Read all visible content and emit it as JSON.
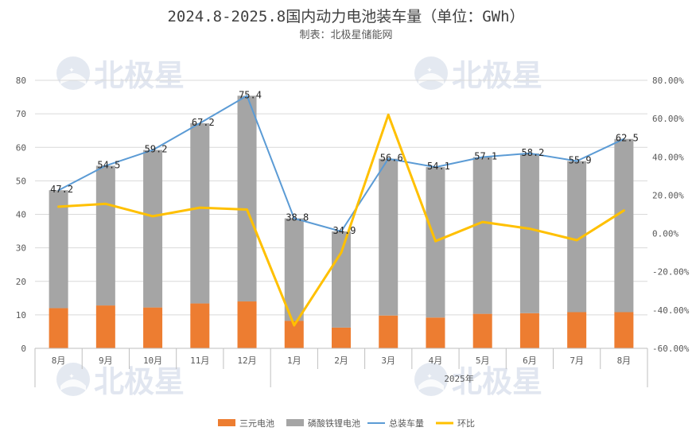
{
  "chart_data": {
    "type": "bar",
    "title": "2024.8-2025.8国内动力电池装车量（单位：GWh）",
    "subtitle": "制表：北极星储能网",
    "categories": [
      "8月",
      "9月",
      "10月",
      "11月",
      "12月",
      "1月",
      "2月",
      "3月",
      "4月",
      "5月",
      "6月",
      "7月",
      "8月"
    ],
    "year_group_label": "2025年",
    "ylim": [
      0,
      80
    ],
    "yticks": [
      "0",
      "10",
      "20",
      "30",
      "40",
      "50",
      "60",
      "70",
      "80"
    ],
    "y2lim": [
      -60,
      80
    ],
    "y2ticks": [
      "-60.00%",
      "-40.00%",
      "-20.00%",
      "0.00%",
      "20.00%",
      "40.00%",
      "60.00%",
      "80.00%"
    ],
    "stacked": true,
    "series": [
      {
        "name": "三元电池",
        "kind": "bar",
        "color": "#ed7d31",
        "values": [
          12.0,
          12.8,
          12.2,
          13.4,
          14.0,
          8.2,
          6.2,
          9.8,
          9.2,
          10.3,
          10.5,
          10.8,
          10.8
        ]
      },
      {
        "name": "磷酸铁锂电池",
        "kind": "bar",
        "color": "#a5a5a5",
        "values": [
          35.2,
          41.7,
          47.0,
          53.8,
          61.4,
          30.6,
          28.7,
          46.8,
          44.9,
          46.8,
          47.7,
          45.1,
          51.7
        ]
      },
      {
        "name": "总装车量",
        "kind": "line",
        "color": "#5b9bd5",
        "values": [
          47.2,
          54.5,
          59.2,
          67.2,
          75.4,
          38.8,
          34.9,
          56.6,
          54.1,
          57.1,
          58.2,
          55.9,
          62.5
        ],
        "labels": [
          "47.2",
          "54.5",
          "59.2",
          "67.2",
          "75.4",
          "38.8",
          "34.9",
          "56.6",
          "54.1",
          "57.1",
          "58.2",
          "55.9",
          "62.5"
        ]
      },
      {
        "name": "环比",
        "kind": "line",
        "axis": "right",
        "color": "#ffc000",
        "values": [
          14,
          15.5,
          9,
          13.5,
          12.5,
          -48,
          -10,
          62,
          -4,
          6,
          2.5,
          -3.5,
          12
        ]
      }
    ],
    "legend_position": "bottom"
  },
  "watermark": {
    "text": "北极星",
    "color": "#c9d3e4"
  }
}
